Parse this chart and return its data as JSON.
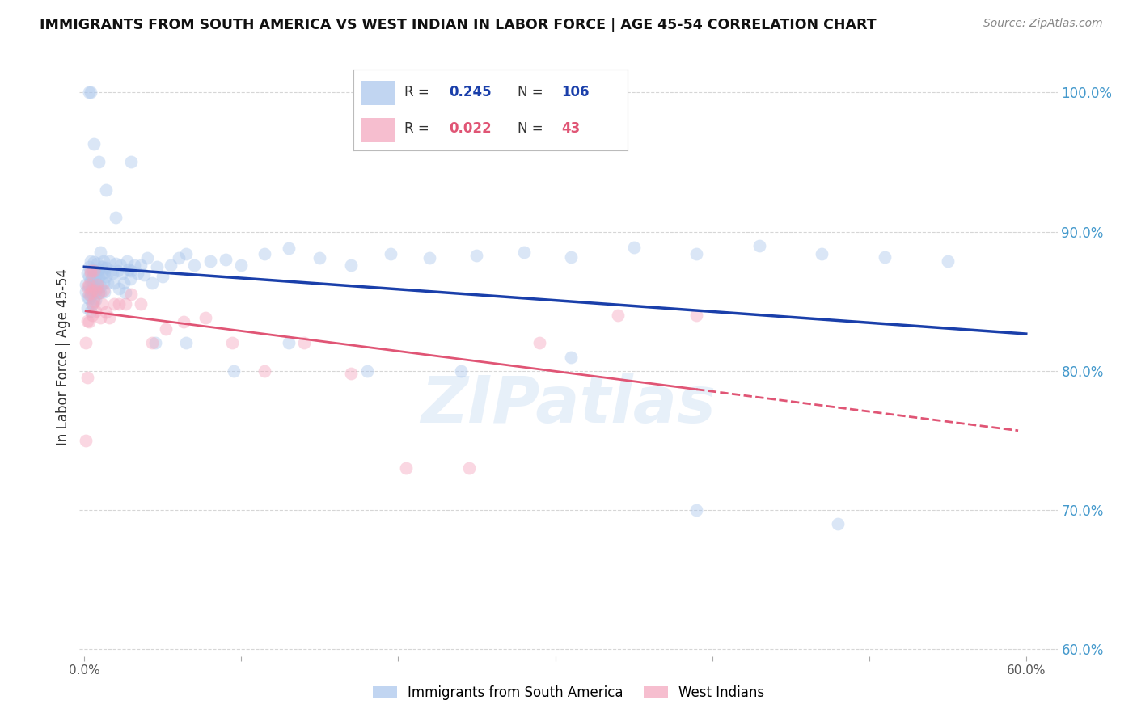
{
  "title": "IMMIGRANTS FROM SOUTH AMERICA VS WEST INDIAN IN LABOR FORCE | AGE 45-54 CORRELATION CHART",
  "source": "Source: ZipAtlas.com",
  "ylabel": "In Labor Force | Age 45-54",
  "xlim": [
    -0.003,
    0.62
  ],
  "ylim": [
    0.595,
    1.025
  ],
  "ytick_labels_right": [
    "60.0%",
    "70.0%",
    "80.0%",
    "90.0%",
    "100.0%"
  ],
  "ytick_vals_right": [
    0.6,
    0.7,
    0.8,
    0.9,
    1.0
  ],
  "legend_blue_R": "0.245",
  "legend_blue_N": "106",
  "legend_pink_R": "0.022",
  "legend_pink_N": "43",
  "blue_color": "#adc8ed",
  "pink_color": "#f4a8bf",
  "blue_line_color": "#1a3faa",
  "pink_line_color": "#e05575",
  "right_axis_color": "#4499cc",
  "background_color": "#ffffff",
  "grid_color": "#cccccc",
  "blue_x": [
    0.001,
    0.001,
    0.002,
    0.002,
    0.002,
    0.003,
    0.003,
    0.003,
    0.003,
    0.004,
    0.004,
    0.004,
    0.004,
    0.005,
    0.005,
    0.005,
    0.005,
    0.005,
    0.006,
    0.006,
    0.006,
    0.006,
    0.007,
    0.007,
    0.007,
    0.007,
    0.008,
    0.008,
    0.008,
    0.008,
    0.009,
    0.009,
    0.009,
    0.01,
    0.01,
    0.01,
    0.011,
    0.011,
    0.012,
    0.012,
    0.013,
    0.013,
    0.014,
    0.014,
    0.015,
    0.016,
    0.017,
    0.018,
    0.019,
    0.02,
    0.021,
    0.022,
    0.023,
    0.024,
    0.025,
    0.026,
    0.027,
    0.028,
    0.029,
    0.03,
    0.032,
    0.034,
    0.036,
    0.038,
    0.04,
    0.043,
    0.046,
    0.05,
    0.055,
    0.06,
    0.065,
    0.07,
    0.08,
    0.09,
    0.1,
    0.115,
    0.13,
    0.15,
    0.17,
    0.195,
    0.22,
    0.25,
    0.28,
    0.31,
    0.35,
    0.39,
    0.43,
    0.47,
    0.51,
    0.55,
    0.003,
    0.004,
    0.006,
    0.009,
    0.014,
    0.02,
    0.03,
    0.045,
    0.065,
    0.095,
    0.13,
    0.18,
    0.24,
    0.31,
    0.39,
    0.48
  ],
  "blue_y": [
    0.857,
    0.862,
    0.853,
    0.87,
    0.845,
    0.86,
    0.875,
    0.852,
    0.868,
    0.865,
    0.854,
    0.879,
    0.843,
    0.86,
    0.872,
    0.848,
    0.867,
    0.856,
    0.863,
    0.852,
    0.869,
    0.878,
    0.864,
    0.851,
    0.87,
    0.856,
    0.877,
    0.859,
    0.863,
    0.87,
    0.867,
    0.873,
    0.856,
    0.861,
    0.856,
    0.885,
    0.875,
    0.87,
    0.879,
    0.863,
    0.871,
    0.857,
    0.874,
    0.868,
    0.863,
    0.879,
    0.872,
    0.87,
    0.863,
    0.877,
    0.872,
    0.859,
    0.876,
    0.87,
    0.863,
    0.856,
    0.879,
    0.873,
    0.866,
    0.872,
    0.876,
    0.87,
    0.876,
    0.869,
    0.881,
    0.863,
    0.875,
    0.868,
    0.876,
    0.881,
    0.884,
    0.876,
    0.879,
    0.88,
    0.876,
    0.884,
    0.888,
    0.881,
    0.876,
    0.884,
    0.881,
    0.883,
    0.885,
    0.882,
    0.889,
    0.884,
    0.89,
    0.884,
    0.882,
    0.879,
    1.0,
    1.0,
    0.963,
    0.95,
    0.93,
    0.91,
    0.95,
    0.82,
    0.82,
    0.8,
    0.82,
    0.8,
    0.8,
    0.81,
    0.7,
    0.69
  ],
  "pink_x": [
    0.001,
    0.001,
    0.002,
    0.002,
    0.002,
    0.003,
    0.003,
    0.003,
    0.004,
    0.004,
    0.004,
    0.005,
    0.005,
    0.005,
    0.006,
    0.006,
    0.007,
    0.007,
    0.008,
    0.009,
    0.01,
    0.011,
    0.012,
    0.014,
    0.016,
    0.019,
    0.022,
    0.026,
    0.03,
    0.036,
    0.043,
    0.052,
    0.063,
    0.077,
    0.094,
    0.115,
    0.14,
    0.17,
    0.205,
    0.245,
    0.29,
    0.34,
    0.39
  ],
  "pink_y": [
    0.75,
    0.82,
    0.795,
    0.86,
    0.836,
    0.855,
    0.862,
    0.835,
    0.872,
    0.856,
    0.87,
    0.84,
    0.858,
    0.848,
    0.872,
    0.85,
    0.858,
    0.843,
    0.862,
    0.856,
    0.838,
    0.848,
    0.858,
    0.842,
    0.838,
    0.848,
    0.848,
    0.848,
    0.855,
    0.848,
    0.82,
    0.83,
    0.835,
    0.838,
    0.82,
    0.8,
    0.82,
    0.798,
    0.73,
    0.73,
    0.82,
    0.84,
    0.84
  ],
  "watermark": "ZIPatlas",
  "marker_size": 130,
  "marker_alpha": 0.45,
  "figsize": [
    14.06,
    8.92
  ],
  "dpi": 100
}
